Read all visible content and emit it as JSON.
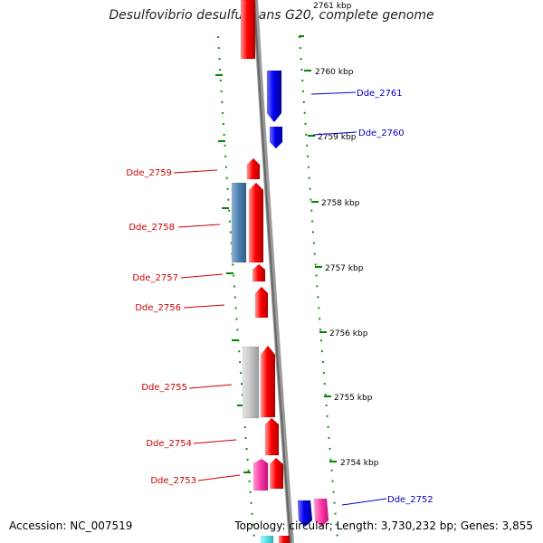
{
  "title": "Desulfovibrio desulfuricans G20, complete genome",
  "accession": "Accession: NC_007519",
  "summary": "Topology: circular; Length: 3,730,232 bp; Genes: 3,855",
  "colors": {
    "backbone": "#808080",
    "forward_gene": "#ff0000",
    "reverse_gene": "#0000ff",
    "label_forward": "#cc0000",
    "label_reverse": "#0000cc",
    "tick": "#008800"
  },
  "kbp_marks": [
    "2761 kbp",
    "2760 kbp",
    "2759 kbp",
    "2758 kbp",
    "2757 kbp",
    "2756 kbp",
    "2755 kbp",
    "2754 kbp"
  ],
  "gene_labels": [
    {
      "text": "Dde_2761",
      "side": "right"
    },
    {
      "text": "Dde_2760",
      "side": "right"
    },
    {
      "text": "Dde_2759",
      "side": "left"
    },
    {
      "text": "Dde_2758",
      "side": "left"
    },
    {
      "text": "Dde_2757",
      "side": "left"
    },
    {
      "text": "Dde_2756",
      "side": "left"
    },
    {
      "text": "Dde_2755",
      "side": "left"
    },
    {
      "text": "Dde_2754",
      "side": "left"
    },
    {
      "text": "Dde_2753",
      "side": "left"
    },
    {
      "text": "Dde_2752",
      "side": "right"
    }
  ]
}
